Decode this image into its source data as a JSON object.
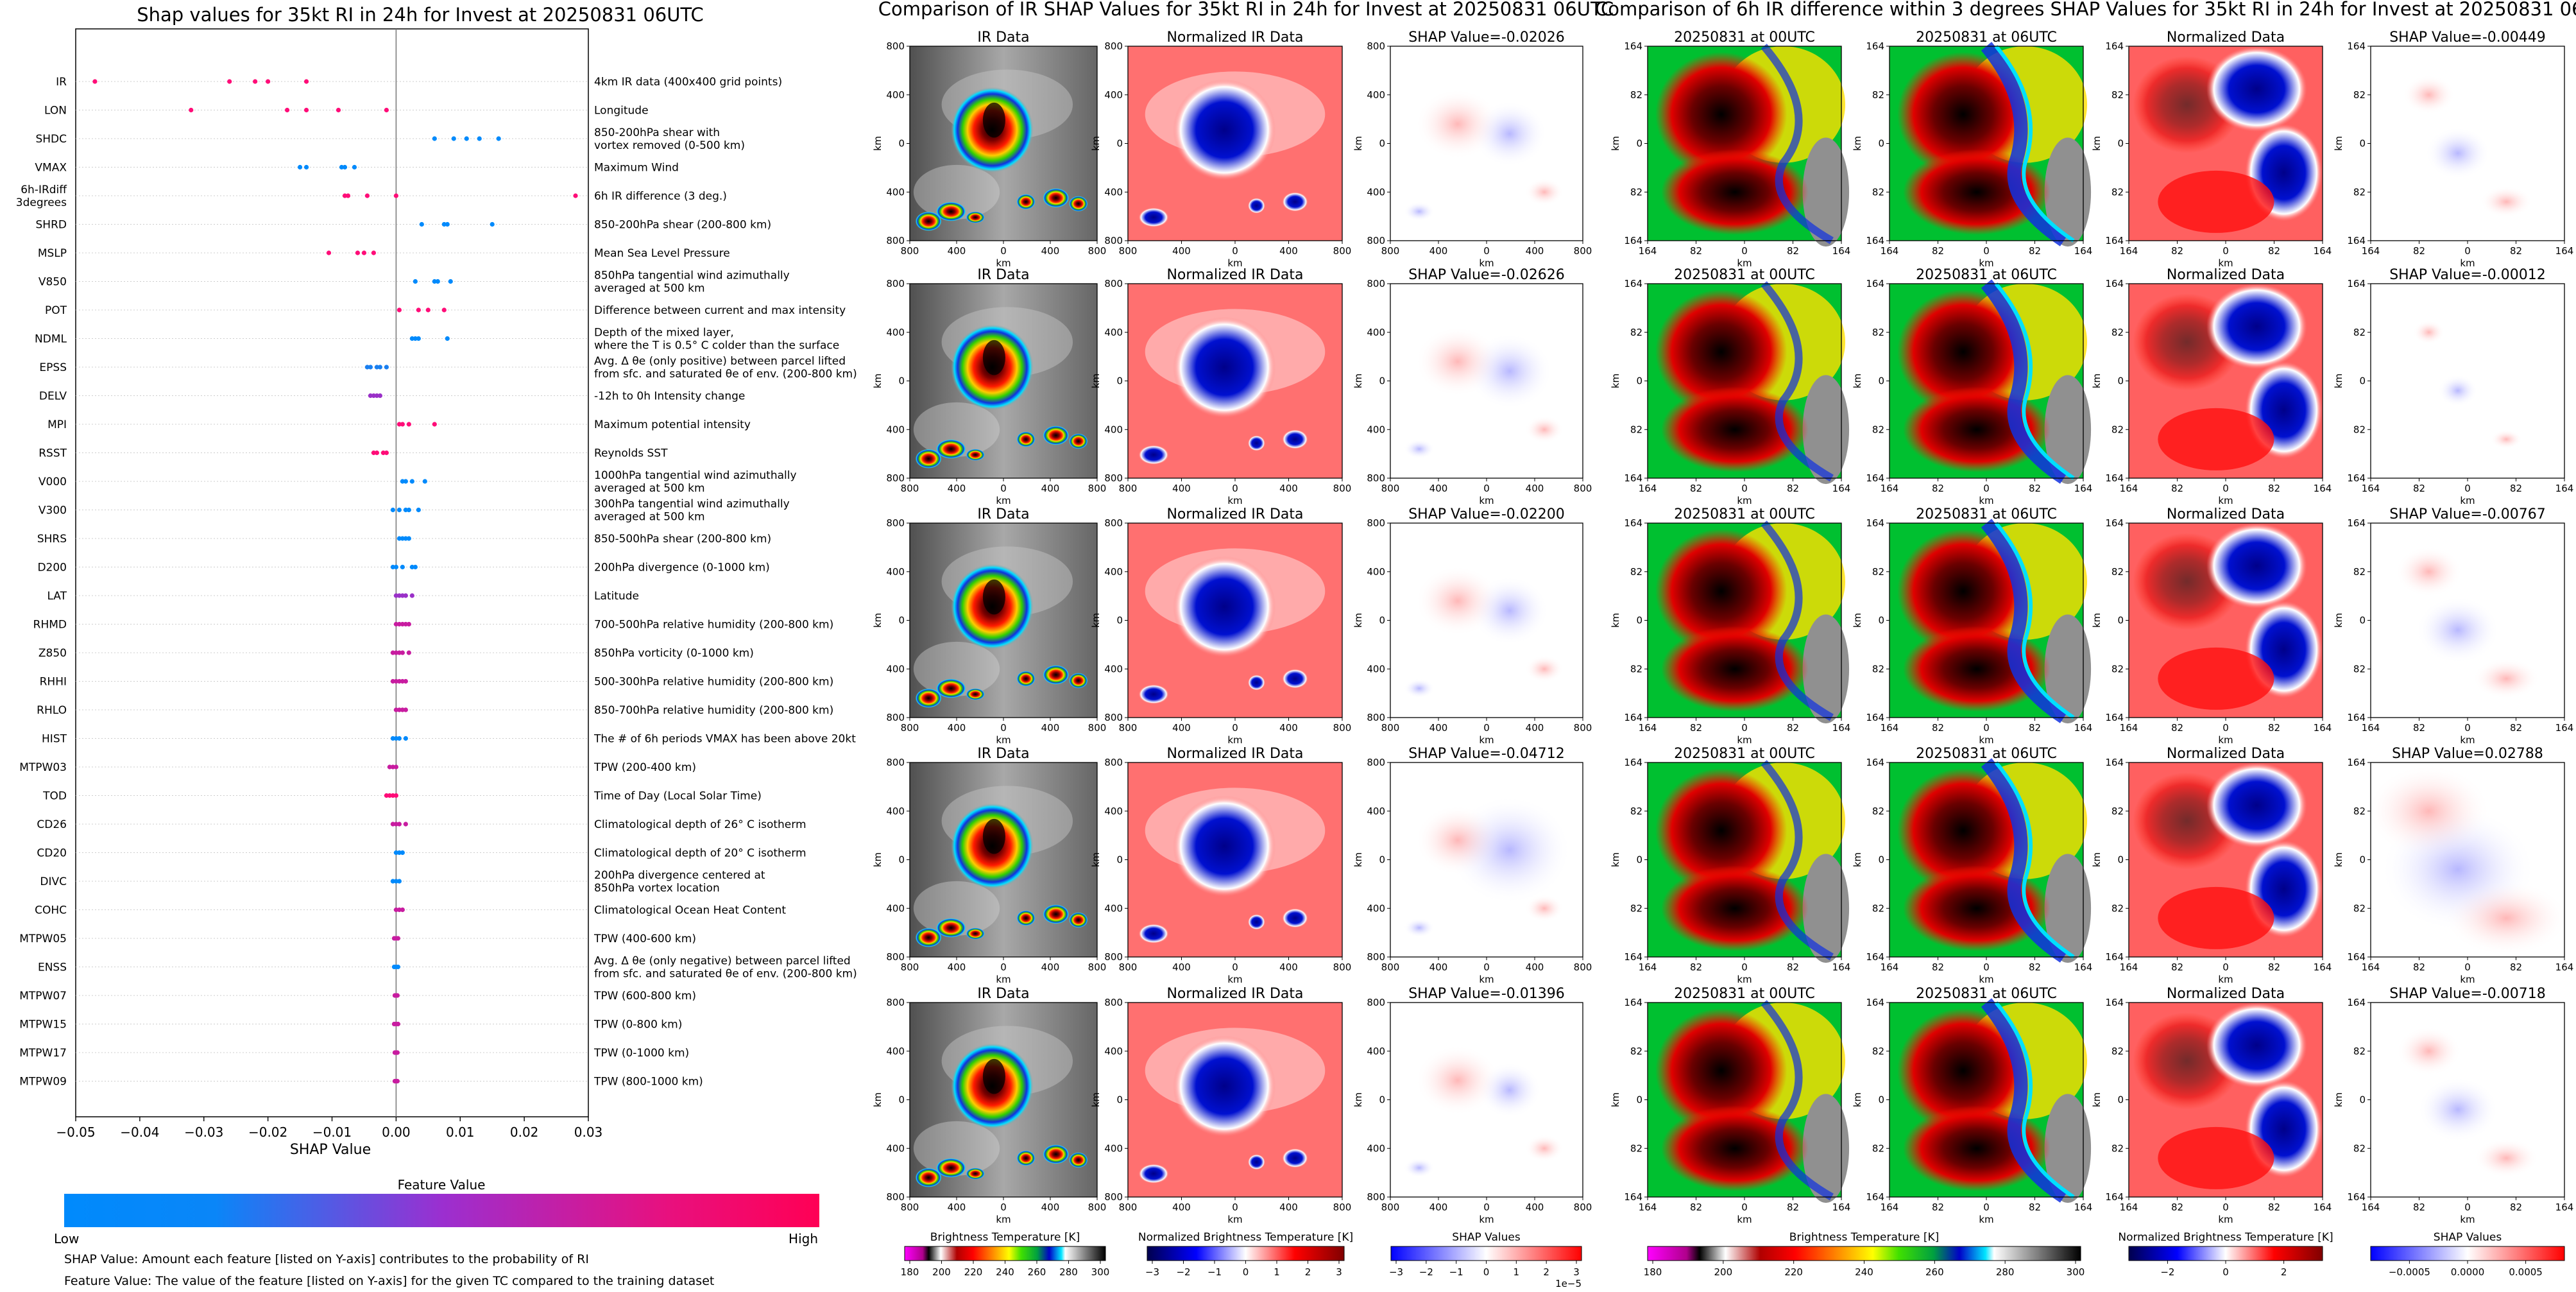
{
  "shap_summary": {
    "title": "Shap values for 35kt RI in 24h for Invest at 20250831 06UTC",
    "xlabel": "SHAP Value",
    "xlim": [
      -0.05,
      0.03
    ],
    "xticks": [
      -0.05,
      -0.04,
      -0.03,
      -0.02,
      -0.01,
      0.0,
      0.01,
      0.02,
      0.03
    ],
    "xtick_labels": [
      "−0.05",
      "−0.04",
      "−0.03",
      "−0.02",
      "−0.01",
      "0.00",
      "0.01",
      "0.02",
      "0.03"
    ],
    "grid": "horizontal",
    "features": [
      {
        "name": "IR",
        "desc": [
          "4km IR data (400x400 grid points)"
        ],
        "values": [
          -0.047,
          -0.026,
          -0.022,
          -0.02,
          -0.014
        ],
        "color": "#ff0d78"
      },
      {
        "name": "LON",
        "desc": [
          "Longitude"
        ],
        "values": [
          -0.032,
          -0.017,
          -0.014,
          -0.009,
          -0.0015
        ],
        "color": "#ff0d78"
      },
      {
        "name": "SHDC",
        "desc": [
          "850-200hPa shear with",
          "vortex removed (0-500 km)"
        ],
        "values": [
          0.006,
          0.009,
          0.011,
          0.013,
          0.016
        ],
        "color": "#008afc"
      },
      {
        "name": "VMAX",
        "desc": [
          "Maximum Wind"
        ],
        "values": [
          -0.015,
          -0.014,
          -0.0085,
          -0.008,
          -0.0065
        ],
        "color": "#008afc"
      },
      {
        "name": "6h-IRdiff_3degrees",
        "display": [
          "6h-IRdiff",
          "3degrees"
        ],
        "desc": [
          "6h IR difference (3 deg.)"
        ],
        "values": [
          -0.008,
          -0.0075,
          -0.0045,
          0.0,
          0.028
        ],
        "color": "#ff0d78"
      },
      {
        "name": "SHRD",
        "desc": [
          "850-200hPa shear (200-800 km)"
        ],
        "values": [
          0.004,
          0.0075,
          0.008,
          0.015
        ],
        "color": "#008afc"
      },
      {
        "name": "MSLP",
        "desc": [
          "Mean Sea Level Pressure"
        ],
        "values": [
          -0.0105,
          -0.006,
          -0.005,
          -0.0035
        ],
        "color": "#ff0d78"
      },
      {
        "name": "V850",
        "desc": [
          "850hPa tangential wind azimuthally",
          "averaged at 500 km"
        ],
        "values": [
          0.003,
          0.006,
          0.0065,
          0.0085
        ],
        "color": "#008afc"
      },
      {
        "name": "POT",
        "desc": [
          "Difference between current and max intensity"
        ],
        "values": [
          0.0005,
          0.0035,
          0.005,
          0.0075
        ],
        "color": "#ff0d78"
      },
      {
        "name": "NDML",
        "desc": [
          "Depth of the mixed layer,",
          "where the T is 0.5° C colder than the surface"
        ],
        "values": [
          0.0025,
          0.003,
          0.0035,
          0.008
        ],
        "color": "#008afc"
      },
      {
        "name": "EPSS",
        "desc": [
          "Avg. Δ θe (only positive) between parcel lifted",
          "from sfc. and saturated θe of env. (200-800 km)"
        ],
        "values": [
          -0.0045,
          -0.004,
          -0.003,
          -0.0025,
          -0.0015
        ],
        "color": "#1a7ff0"
      },
      {
        "name": "DELV",
        "desc": [
          "-12h to 0h Intensity change"
        ],
        "values": [
          -0.004,
          -0.0035,
          -0.003,
          -0.0025
        ],
        "color": "#9a30c8"
      },
      {
        "name": "MPI",
        "desc": [
          "Maximum potential intensity"
        ],
        "values": [
          0.0005,
          0.001,
          0.002,
          0.006
        ],
        "color": "#ff0d78"
      },
      {
        "name": "RSST",
        "desc": [
          "Reynolds SST"
        ],
        "values": [
          -0.0035,
          -0.003,
          -0.002,
          -0.0015
        ],
        "color": "#ff0d78"
      },
      {
        "name": "V000",
        "desc": [
          "1000hPa tangential wind azimuthally",
          "averaged at 500 km"
        ],
        "values": [
          0.001,
          0.0015,
          0.0025,
          0.0045
        ],
        "color": "#008afc"
      },
      {
        "name": "V300",
        "desc": [
          "300hPa tangential wind azimuthally",
          "averaged at 500 km"
        ],
        "values": [
          -0.0005,
          0.0005,
          0.0015,
          0.002,
          0.0035
        ],
        "color": "#008afc"
      },
      {
        "name": "SHRS",
        "desc": [
          "850-500hPa shear (200-800 km)"
        ],
        "values": [
          0.0005,
          0.001,
          0.0015,
          0.002
        ],
        "color": "#008afc"
      },
      {
        "name": "D200",
        "desc": [
          "200hPa divergence (0-1000 km)"
        ],
        "values": [
          -0.0005,
          0.0,
          0.001,
          0.0025,
          0.003
        ],
        "color": "#008afc"
      },
      {
        "name": "LAT",
        "desc": [
          "Latitude"
        ],
        "values": [
          0.0,
          0.0005,
          0.001,
          0.0015,
          0.0025
        ],
        "color": "#9a30c8"
      },
      {
        "name": "RHMD",
        "desc": [
          "700-500hPa relative humidity (200-800 km)"
        ],
        "values": [
          0.0,
          0.0005,
          0.001,
          0.0015,
          0.002
        ],
        "color": "#c81ca0"
      },
      {
        "name": "Z850",
        "desc": [
          "850hPa vorticity (0-1000 km)"
        ],
        "values": [
          -0.0005,
          0.0,
          0.0005,
          0.001,
          0.002
        ],
        "color": "#c81ca0"
      },
      {
        "name": "RHHI",
        "desc": [
          "500-300hPa relative humidity (200-800 km)"
        ],
        "values": [
          -0.0005,
          0.0,
          0.0005,
          0.001,
          0.0015
        ],
        "color": "#c81ca0"
      },
      {
        "name": "RHLO",
        "desc": [
          "850-700hPa relative humidity (200-800 km)"
        ],
        "values": [
          0.0,
          0.0005,
          0.001,
          0.0015
        ],
        "color": "#c81ca0"
      },
      {
        "name": "HIST",
        "desc": [
          "The # of 6h periods VMAX has been above 20kt"
        ],
        "values": [
          -0.0005,
          0.0,
          0.0005,
          0.0015
        ],
        "color": "#008afc"
      },
      {
        "name": "MTPW03",
        "desc": [
          "TPW (200-400 km)"
        ],
        "values": [
          -0.001,
          -0.0005,
          0.0
        ],
        "color": "#c81ca0"
      },
      {
        "name": "TOD",
        "desc": [
          "Time of Day (Local Solar Time)"
        ],
        "values": [
          -0.0015,
          -0.001,
          -0.0005,
          0.0
        ],
        "color": "#ff0d78"
      },
      {
        "name": "CD26",
        "desc": [
          "Climatological depth of 26° C isotherm"
        ],
        "values": [
          -0.0005,
          0.0,
          0.0005,
          0.0015
        ],
        "color": "#c81ca0"
      },
      {
        "name": "CD20",
        "desc": [
          "Climatological depth of 20° C isotherm"
        ],
        "values": [
          0.0,
          0.0005,
          0.001
        ],
        "color": "#008afc"
      },
      {
        "name": "DIVC",
        "desc": [
          "200hPa divergence centered at",
          "850hPa vortex location"
        ],
        "values": [
          -0.0005,
          0.0,
          0.0005
        ],
        "color": "#008afc"
      },
      {
        "name": "COHC",
        "desc": [
          "Climatological Ocean Heat Content"
        ],
        "values": [
          0.0,
          0.0005,
          0.001
        ],
        "color": "#c81ca0"
      },
      {
        "name": "MTPW05",
        "desc": [
          "TPW (400-600 km)"
        ],
        "values": [
          -0.0003,
          0.0,
          0.0003
        ],
        "color": "#c81ca0"
      },
      {
        "name": "ENSS",
        "desc": [
          "Avg. Δ θe (only negative) between parcel lifted",
          "from sfc. and saturated θe of env. (200-800 km)"
        ],
        "values": [
          -0.0003,
          0.0,
          0.0003
        ],
        "color": "#008afc"
      },
      {
        "name": "MTPW07",
        "desc": [
          "TPW (600-800 km)"
        ],
        "values": [
          -0.0002,
          0.0,
          0.0002
        ],
        "color": "#c81ca0"
      },
      {
        "name": "MTPW15",
        "desc": [
          "TPW (0-800 km)"
        ],
        "values": [
          -0.0003,
          0.0,
          0.0003
        ],
        "color": "#c81ca0"
      },
      {
        "name": "MTPW17",
        "desc": [
          "TPW (0-1000 km)"
        ],
        "values": [
          -0.0002,
          0.0,
          0.0002
        ],
        "color": "#c81ca0"
      },
      {
        "name": "MTPW09",
        "desc": [
          "TPW (800-1000 km)"
        ],
        "values": [
          -0.0002,
          0.0,
          0.0002
        ],
        "color": "#c81ca0"
      }
    ],
    "colorbar": {
      "title": "Feature Value",
      "low_label": "Low",
      "high_label": "High",
      "low_color": "#008afc",
      "high_color": "#ff0055"
    },
    "notes": [
      "SHAP Value: Amount each feature [listed on Y-axis] contributes to the probability of RI",
      "Feature Value: The value of the feature [listed on Y-axis] for the given TC compared to the training dataset"
    ]
  },
  "ir_panels": {
    "suptitle": "Comparison of IR SHAP Values for 35kt RI in 24h for Invest at 20250831 06UTC",
    "col_titles": [
      "IR Data",
      "Normalized IR Data"
    ],
    "shap_titles": [
      "SHAP Value=-0.02026",
      "SHAP Value=-0.02626",
      "SHAP Value=-0.02200",
      "SHAP Value=-0.04712",
      "SHAP Value=-0.01396"
    ],
    "tick_labels": [
      "800",
      "400",
      "0",
      "400",
      "800"
    ],
    "axis_label": "km",
    "colorbars": [
      {
        "label": "Brightness Temperature [K]",
        "ticks": [
          "180",
          "200",
          "220",
          "240",
          "260",
          "280",
          "300"
        ]
      },
      {
        "label": "Normalized Brightness Temperature [K]",
        "ticks": [
          "−3",
          "−2",
          "−1",
          "0",
          "1",
          "2",
          "3"
        ]
      },
      {
        "label": "SHAP Values",
        "ticks": [
          "−3",
          "−2",
          "−1",
          "0",
          "1",
          "2",
          "3"
        ],
        "offset": "1e−5"
      }
    ]
  },
  "diff_panels": {
    "suptitle": "Comparison of 6h IR difference within 3 degrees SHAP Values for 35kt RI in 24h for Invest at 20250831 06UTC",
    "col_titles": [
      "20250831 at 00UTC",
      "20250831 at 06UTC",
      "Normalized Data"
    ],
    "shap_titles": [
      "SHAP Value=-0.00449",
      "SHAP Value=-0.00012",
      "SHAP Value=-0.00767",
      "SHAP Value=0.02788",
      "SHAP Value=-0.00718"
    ],
    "tick_labels": [
      "164",
      "82",
      "0",
      "82",
      "164"
    ],
    "axis_label": "km",
    "colorbars": [
      {
        "label": "Brightness Temperature [K]",
        "ticks": [
          "180",
          "200",
          "220",
          "240",
          "260",
          "280",
          "300"
        ]
      },
      {
        "label": "Normalized Brightness Temperature [K]",
        "ticks": [
          "−2",
          "0",
          "2"
        ]
      },
      {
        "label": "SHAP Values",
        "ticks": [
          "−0.0005",
          "0.0000",
          "0.0005"
        ]
      }
    ]
  },
  "chart_data": [
    {
      "type": "scatter",
      "title": "Shap values for 35kt RI in 24h for Invest at 20250831 06UTC",
      "xlabel": "SHAP Value",
      "xlim": [
        -0.05,
        0.03
      ],
      "note": "SHAP beeswarm summary; categories are features, values are SHAP values per sample"
    },
    {
      "type": "heatmap",
      "title": "Comparison of IR SHAP Values for 35kt RI in 24h for Invest at 20250831 06UTC",
      "rows": 5,
      "columns": [
        "IR Data",
        "Normalized IR Data",
        "SHAP Value"
      ],
      "shap_values": [
        -0.02026,
        -0.02626,
        -0.022,
        -0.04712,
        -0.01396
      ]
    },
    {
      "type": "heatmap",
      "title": "Comparison of 6h IR difference within 3 degrees SHAP Values for 35kt RI in 24h for Invest at 20250831 06UTC",
      "rows": 5,
      "columns": [
        "20250831 at 00UTC",
        "20250831 at 06UTC",
        "Normalized Data",
        "SHAP Value"
      ],
      "shap_values": [
        -0.00449,
        -0.00012,
        -0.00767,
        0.02788,
        -0.00718
      ]
    }
  ]
}
